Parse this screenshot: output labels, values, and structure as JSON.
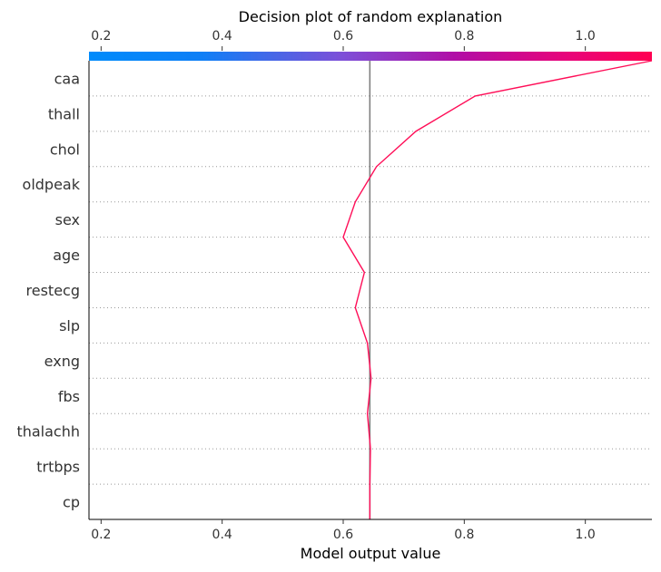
{
  "chart_data": {
    "type": "line",
    "title": "Decision plot of random explanation",
    "xlabel": "Model output value",
    "xlim": [
      0.18,
      1.11
    ],
    "xticks": [
      "0.2",
      "0.4",
      "0.6",
      "0.8",
      "1.0"
    ],
    "xtick_values": [
      0.2,
      0.4,
      0.6,
      0.8,
      1.0
    ],
    "base_value": 0.644,
    "features": [
      "caa",
      "thall",
      "chol",
      "oldpeak",
      "sex",
      "age",
      "restecg",
      "slp",
      "exng",
      "fbs",
      "thalachh",
      "trtbps",
      "cp"
    ],
    "path_values": [
      1.11,
      0.818,
      0.72,
      0.655,
      0.62,
      0.6,
      0.635,
      0.62,
      0.64,
      0.646,
      0.64,
      0.645,
      0.644
    ],
    "colors": {
      "line": "#ff0d57",
      "base_line": "#808080",
      "colorbar_low": "#008bfb",
      "colorbar_mid": "#8a2be2",
      "colorbar_high": "#ff0052",
      "grid": "#999999"
    }
  }
}
